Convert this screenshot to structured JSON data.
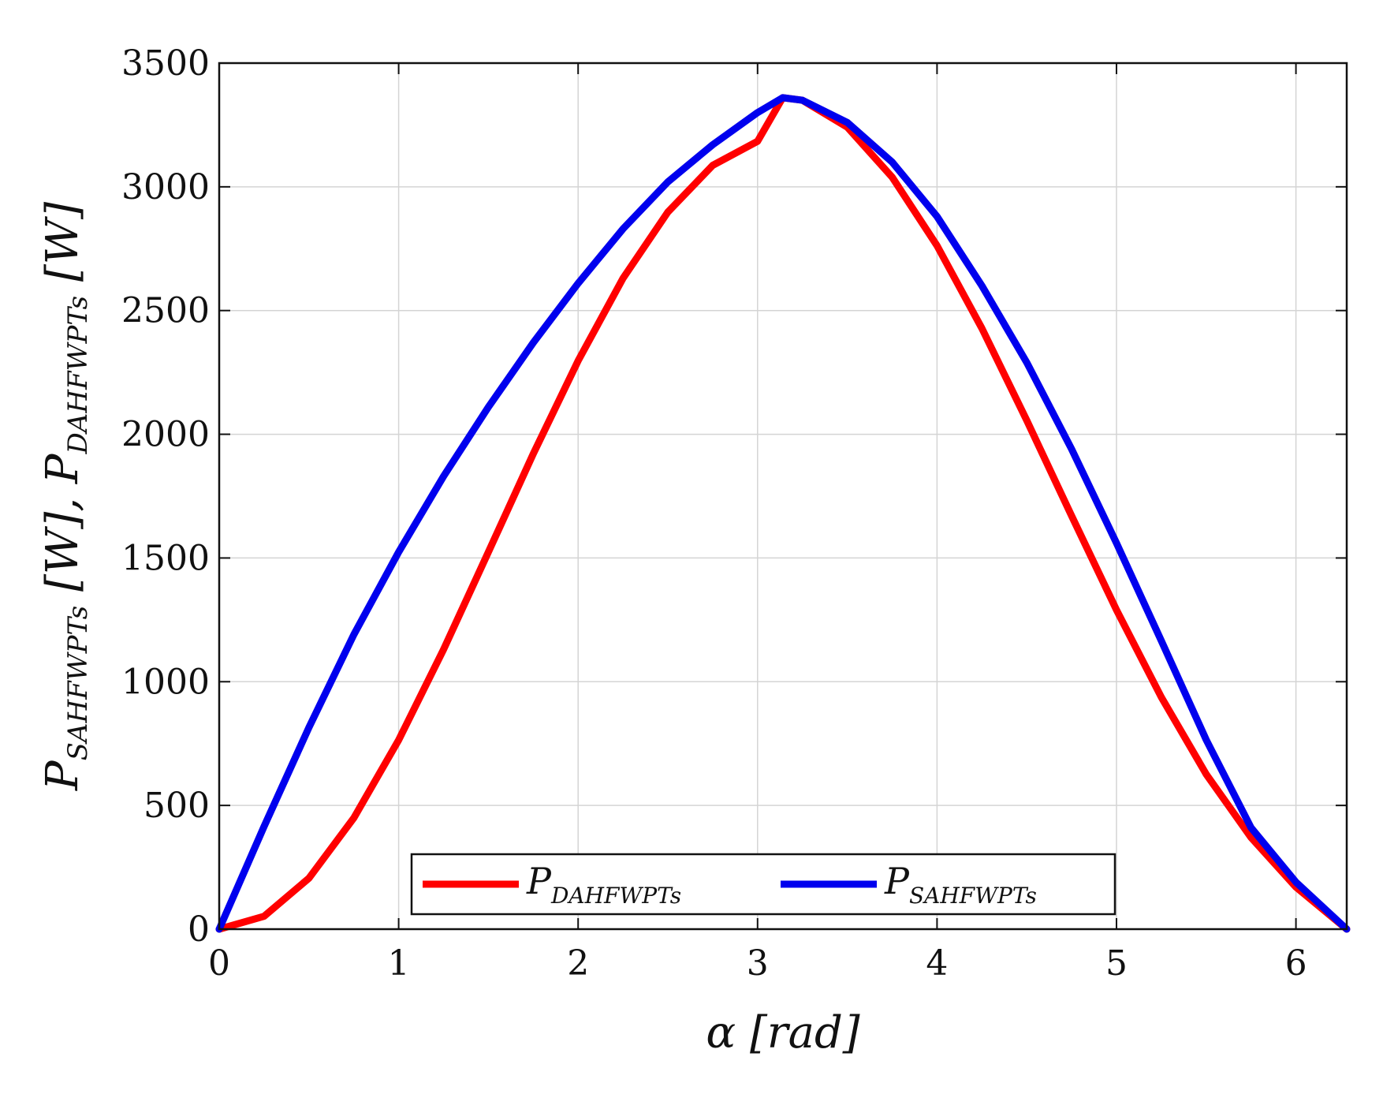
{
  "chart_data": {
    "type": "line",
    "xlabel": "α [rad]",
    "ylabel": "P_SAHFWPTs [W], P_DAHFWPTs [W]",
    "ylabel_parts": {
      "p1": "P",
      "sub1": "SAHFWPTs",
      "unit1": " [W], ",
      "p2": "P",
      "sub2": "DAHFWPTs",
      "unit2": " [W]"
    },
    "xlabel_parts": {
      "sym": "α",
      "unit": " [rad]"
    },
    "xlim": [
      0,
      6.283
    ],
    "ylim": [
      0,
      3500
    ],
    "xticks": [
      0,
      1,
      2,
      3,
      4,
      5,
      6
    ],
    "yticks": [
      0,
      500,
      1000,
      1500,
      2000,
      2500,
      3000,
      3500
    ],
    "grid": true,
    "legend_position": "bottom-center",
    "series": [
      {
        "name": "P_DAHFWPTs",
        "label_main": "P",
        "label_sub": "DAHFWPTs",
        "color": "#ff0000",
        "x": [
          0,
          0.25,
          0.5,
          0.75,
          1.0,
          1.25,
          1.5,
          1.75,
          2.0,
          2.25,
          2.5,
          2.75,
          3.0,
          3.14,
          3.25,
          3.5,
          3.75,
          4.0,
          4.25,
          4.5,
          4.75,
          5.0,
          5.25,
          5.5,
          5.75,
          6.0,
          6.283
        ],
        "y": [
          0,
          52,
          206,
          449,
          764,
          1130,
          1524,
          1921,
          2297,
          2630,
          2898,
          3087,
          3184,
          3360,
          3350,
          3241,
          3039,
          2762,
          2428,
          2056,
          1670,
          1290,
          937,
          626,
          370,
          170,
          0
        ]
      },
      {
        "name": "P_SAHFWPTs",
        "label_main": "P",
        "label_sub": "SAHFWPTs",
        "color": "#0000ee",
        "x": [
          0,
          0.25,
          0.5,
          0.75,
          1.0,
          1.25,
          1.5,
          1.75,
          2.0,
          2.25,
          2.5,
          2.75,
          3.0,
          3.14,
          3.25,
          3.5,
          3.75,
          4.0,
          4.25,
          4.5,
          4.75,
          5.0,
          5.25,
          5.5,
          5.75,
          6.0,
          6.283
        ],
        "y": [
          0,
          415,
          815,
          1190,
          1524,
          1830,
          2110,
          2370,
          2610,
          2830,
          3020,
          3170,
          3300,
          3360,
          3350,
          3260,
          3100,
          2880,
          2600,
          2290,
          1940,
          1560,
          1165,
          765,
          410,
          190,
          0
        ]
      }
    ]
  }
}
